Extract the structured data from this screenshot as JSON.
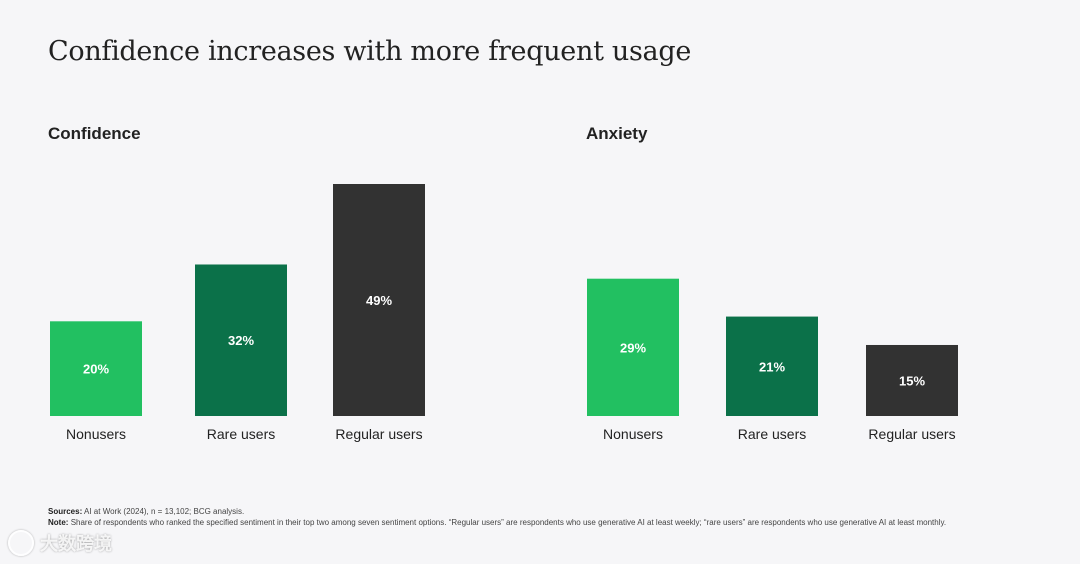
{
  "page": {
    "title": "Confidence increases with more frequent usage"
  },
  "colors": {
    "nonusers": "#22c061",
    "rare_users": "#0b7149",
    "regular_users": "#323232"
  },
  "chart_data": [
    {
      "type": "bar",
      "title": "Confidence",
      "categories": [
        "Nonusers",
        "Rare users",
        "Regular users"
      ],
      "values": [
        20,
        32,
        49
      ],
      "data_labels": [
        "20%",
        "32%",
        "49%"
      ],
      "ylim": [
        0,
        49
      ],
      "grid": false
    },
    {
      "type": "bar",
      "title": "Anxiety",
      "categories": [
        "Nonusers",
        "Rare users",
        "Regular users"
      ],
      "values": [
        29,
        21,
        15
      ],
      "data_labels": [
        "29%",
        "21%",
        "15%"
      ],
      "ylim": [
        0,
        49
      ],
      "grid": false
    }
  ],
  "footer": {
    "sources_label": "Sources:",
    "sources_text": "AI at Work (2024), n = 13,102; BCG analysis.",
    "note_label": "Note:",
    "note_text": "Share of respondents who ranked the specified sentiment in their top two among seven sentiment options. “Regular users” are respondents who use generative AI at least weekly; “rare users” are respondents who use generative AI at least monthly."
  },
  "watermark": {
    "text": "大数跨境",
    "icon": "brand-logo-icon"
  }
}
